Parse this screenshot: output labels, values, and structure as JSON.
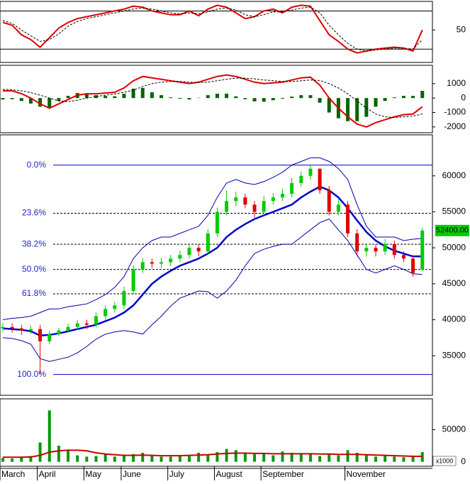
{
  "chart_data": [
    {
      "type": "line",
      "ylim": [
        16,
        80
      ],
      "yticks": [
        50
      ],
      "levels": [
        70,
        30
      ],
      "series": [
        {
          "color": "#e00000",
          "values": [
            58,
            55,
            45,
            40,
            32,
            42,
            52,
            58,
            62,
            64,
            66,
            68,
            70,
            72,
            75,
            74,
            70,
            68,
            66,
            66,
            70,
            65,
            72,
            76,
            74,
            68,
            62,
            64,
            70,
            72,
            68,
            74,
            76,
            75,
            60,
            45,
            38,
            30,
            26,
            28,
            30,
            31,
            32,
            31,
            28,
            50
          ]
        },
        {
          "color": "#000000",
          "dashed": true,
          "values": [
            60,
            57,
            50,
            44,
            38,
            40,
            46,
            54,
            59,
            62,
            64,
            66,
            68,
            70,
            72,
            73,
            72,
            70,
            68,
            67,
            68,
            67,
            69,
            72,
            73,
            71,
            66,
            64,
            66,
            69,
            69,
            71,
            73,
            74,
            68,
            55,
            45,
            36,
            30,
            28,
            29,
            30,
            31,
            31,
            30,
            40
          ]
        }
      ]
    },
    {
      "type": "macd",
      "ylim": [
        -2400,
        2270
      ],
      "yticks": [
        1000,
        0,
        -1000,
        -2000
      ],
      "series": [
        {
          "color": "#e00000",
          "values": [
            500,
            500,
            300,
            0,
            -400,
            -700,
            -400,
            -100,
            200,
            300,
            300,
            350,
            400,
            700,
            1200,
            1500,
            1400,
            1300,
            1200,
            1100,
            1000,
            1100,
            1300,
            1500,
            1600,
            1500,
            1300,
            1100,
            1000,
            1050,
            1100,
            1250,
            1400,
            1450,
            900,
            0,
            -700,
            -1300,
            -1800,
            -2000,
            -1700,
            -1500,
            -1300,
            -1150,
            -1100,
            -600
          ]
        },
        {
          "color": "#000000",
          "dashed": true,
          "values": [
            600,
            580,
            500,
            380,
            200,
            0,
            -200,
            -250,
            -150,
            0,
            100,
            200,
            280,
            400,
            550,
            800,
            1000,
            1100,
            1150,
            1150,
            1100,
            1080,
            1100,
            1200,
            1300,
            1380,
            1380,
            1330,
            1250,
            1200,
            1150,
            1150,
            1200,
            1250,
            1220,
            1000,
            700,
            300,
            -200,
            -700,
            -1100,
            -1300,
            -1350,
            -1300,
            -1250,
            -1100
          ]
        }
      ],
      "histogram": {
        "color": "#006400",
        "values": [
          -100,
          -80,
          -200,
          -380,
          -600,
          -700,
          -200,
          150,
          350,
          300,
          200,
          150,
          120,
          300,
          650,
          700,
          400,
          200,
          50,
          -50,
          -100,
          20,
          200,
          300,
          300,
          120,
          -80,
          -230,
          -250,
          -150,
          -50,
          100,
          200,
          200,
          -320,
          -1000,
          -1400,
          -1600,
          -1600,
          -1300,
          -600,
          -200,
          50,
          150,
          150,
          500
        ]
      }
    },
    {
      "type": "candlestick",
      "ylim": [
        29500,
        65700
      ],
      "yticks": [
        35000,
        40000,
        45000,
        50000,
        55000,
        60000
      ],
      "up_color": "#00cc00",
      "down_color": "#dd0000",
      "open": [
        38800,
        39000,
        38800,
        38500,
        38700,
        37000,
        38000,
        38500,
        39000,
        39500,
        39300,
        40500,
        41500,
        42000,
        44000,
        47000,
        48000,
        47800,
        48000,
        48500,
        49000,
        50000,
        49500,
        52000,
        55000,
        56500,
        57000,
        56000,
        55000,
        56500,
        57000,
        57500,
        59000,
        60000,
        61000,
        58000,
        55000,
        56000,
        52000,
        49500,
        50000,
        49500,
        50500,
        49000,
        48500,
        47000
      ],
      "high": [
        39600,
        39500,
        39300,
        39200,
        39300,
        38500,
        38900,
        39500,
        40000,
        40000,
        41000,
        42000,
        42500,
        44600,
        47600,
        48600,
        48500,
        48600,
        49000,
        49600,
        50600,
        50500,
        52600,
        55600,
        58000,
        57800,
        57500,
        56500,
        57200,
        57600,
        58200,
        59700,
        60600,
        61500,
        61000,
        58600,
        56800,
        56500,
        52600,
        50600,
        50500,
        51200,
        51000,
        49500,
        48800,
        52800
      ],
      "low": [
        38300,
        38200,
        37900,
        38000,
        32500,
        36600,
        37700,
        38200,
        38600,
        38700,
        39000,
        40000,
        41000,
        41500,
        43500,
        46500,
        47200,
        47200,
        47500,
        48000,
        48500,
        48800,
        49000,
        51500,
        54500,
        55800,
        55500,
        54200,
        54500,
        56000,
        56500,
        57000,
        58500,
        59500,
        57500,
        54500,
        54500,
        51500,
        48800,
        48800,
        48800,
        49000,
        48500,
        48000,
        46000,
        46800
      ],
      "close": [
        39000,
        38800,
        38500,
        38700,
        37000,
        38000,
        38500,
        39000,
        39500,
        39300,
        40500,
        41500,
        42000,
        44000,
        47000,
        48000,
        47800,
        48000,
        48500,
        49000,
        50000,
        49500,
        52000,
        55000,
        56500,
        57000,
        56000,
        55000,
        56500,
        57000,
        57500,
        59000,
        60000,
        61000,
        58000,
        55000,
        56000,
        52000,
        49500,
        50000,
        49500,
        50500,
        49000,
        48500,
        46500,
        52400
      ],
      "overlays": [
        {
          "color": "#0000cc",
          "width": 2.5,
          "values": [
            38800,
            38700,
            38600,
            38400,
            37800,
            37900,
            38100,
            38400,
            38700,
            39000,
            39300,
            39800,
            40300,
            41000,
            42000,
            43500,
            45000,
            46000,
            46800,
            47500,
            48000,
            48500,
            49200,
            50000,
            51500,
            52500,
            53300,
            54000,
            54500,
            55000,
            55500,
            56000,
            57000,
            57800,
            58500,
            58000,
            57000,
            55500,
            53800,
            52200,
            51000,
            50200,
            49600,
            49200,
            48800,
            48800
          ]
        },
        {
          "color": "#0000aa",
          "width": 1,
          "values": [
            40000,
            40200,
            40300,
            40500,
            41000,
            41500,
            41500,
            41800,
            42000,
            42200,
            42800,
            43500,
            44500,
            46000,
            48500,
            50000,
            51000,
            51500,
            51500,
            52000,
            52500,
            53000,
            54500,
            57000,
            59000,
            59500,
            59000,
            58800,
            59200,
            59800,
            60500,
            61500,
            62000,
            62500,
            62500,
            62000,
            61000,
            59500,
            56000,
            53000,
            51500,
            51500,
            51500,
            51000,
            51200,
            51300
          ]
        },
        {
          "color": "#0000aa",
          "width": 1,
          "values": [
            37500,
            37400,
            37100,
            36600,
            34600,
            34200,
            34500,
            34800,
            35400,
            36300,
            37300,
            38000,
            38300,
            38500,
            38300,
            38000,
            39300,
            40500,
            41900,
            43000,
            43500,
            44000,
            43900,
            43000,
            44000,
            45500,
            47500,
            49200,
            49800,
            50200,
            50500,
            50500,
            51500,
            52500,
            53500,
            54000,
            52500,
            51000,
            49000,
            47000,
            46500,
            47000,
            47500,
            47000,
            46400,
            46300
          ]
        }
      ],
      "fib_levels": [
        {
          "label": "0.0%",
          "value": 61500
        },
        {
          "label": "23.6%",
          "value": 54800
        },
        {
          "label": "38.2%",
          "value": 50500
        },
        {
          "label": "50.0%",
          "value": 47000
        },
        {
          "label": "61.8%",
          "value": 43600
        },
        {
          "label": "100.0%",
          "value": 32400
        }
      ],
      "last_price": {
        "value": 52400,
        "label": "52400.00"
      }
    },
    {
      "type": "volume",
      "ylim": [
        -7000,
        98000
      ],
      "yticks": [
        50000,
        0
      ],
      "color": "#009900",
      "unit_label": "x1000",
      "values": [
        6000,
        5000,
        7000,
        9000,
        30000,
        80000,
        25000,
        18000,
        10000,
        8000,
        9000,
        12000,
        8000,
        9000,
        12000,
        14000,
        9000,
        8000,
        8000,
        9000,
        10000,
        14000,
        10000,
        15000,
        20000,
        18000,
        14000,
        12000,
        12000,
        10000,
        16000,
        14000,
        12000,
        13000,
        9000,
        12000,
        10000,
        18000,
        14000,
        10000,
        8000,
        9000,
        8000,
        7000,
        9000,
        15000
      ],
      "ma": {
        "color": "#cc0000",
        "values": [
          7000,
          7000,
          7000,
          7500,
          10000,
          15000,
          17000,
          18000,
          18000,
          17000,
          14000,
          12000,
          11000,
          10000,
          10000,
          10500,
          10000,
          9500,
          9500,
          9500,
          10000,
          10500,
          11000,
          12000,
          13000,
          13500,
          13500,
          13000,
          13000,
          12500,
          12500,
          12500,
          12500,
          12500,
          12000,
          12000,
          11500,
          11500,
          11500,
          11000,
          10500,
          10000,
          9500,
          9000,
          8500,
          8500
        ]
      },
      "categories": [
        "March",
        null,
        null,
        null,
        "April",
        null,
        null,
        null,
        null,
        "May",
        null,
        null,
        null,
        "June",
        null,
        null,
        null,
        null,
        "July",
        null,
        null,
        null,
        null,
        "August",
        null,
        null,
        null,
        null,
        "September",
        null,
        null,
        null,
        null,
        null,
        null,
        null,
        null,
        "November",
        null,
        null,
        null,
        null,
        null,
        null,
        null,
        null
      ]
    }
  ]
}
